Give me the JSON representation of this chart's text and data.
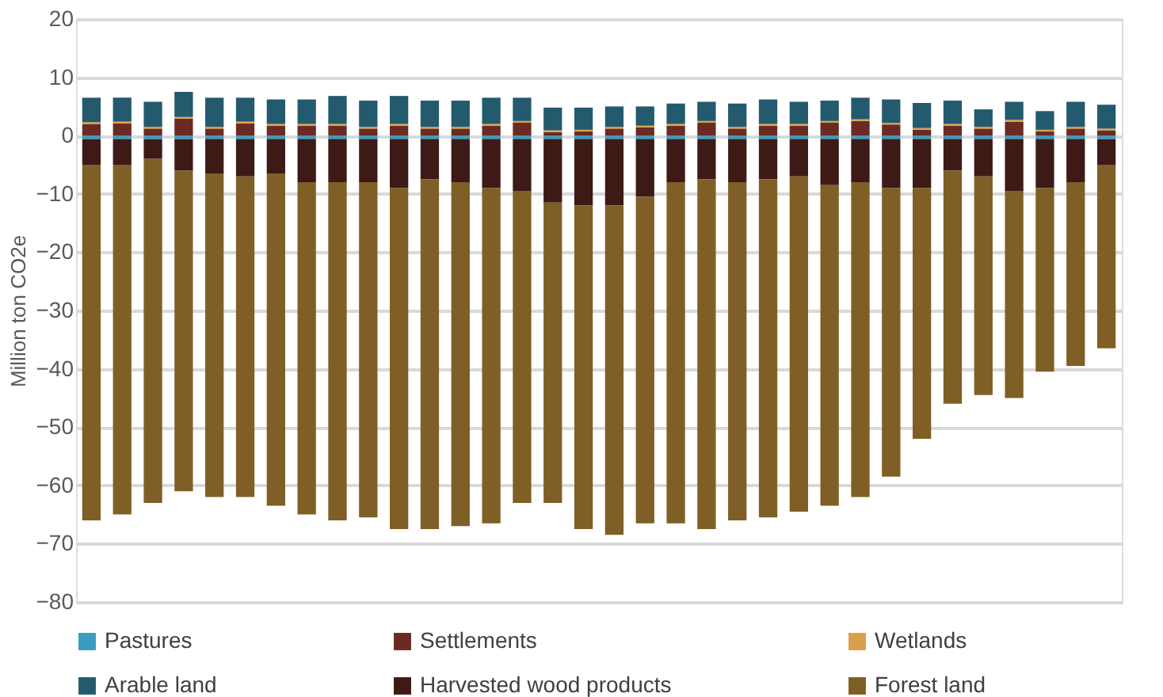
{
  "chart_data": {
    "type": "bar",
    "stacked": true,
    "ylabel": "Million ton CO2e",
    "categories": [
      null,
      null,
      null,
      null,
      null,
      null,
      null,
      null,
      null,
      null,
      null,
      null,
      null,
      null,
      null,
      null,
      null,
      null,
      null,
      null,
      null,
      null,
      null,
      null,
      null,
      null,
      null,
      null,
      null,
      null,
      null,
      null,
      null,
      null
    ],
    "series": [
      {
        "name": "Pastures",
        "color": "#3a9cbf",
        "values": [
          -0.6,
          -0.6,
          -0.6,
          -0.6,
          -0.6,
          -0.6,
          -0.6,
          -0.6,
          -0.6,
          -0.6,
          -0.6,
          -0.6,
          -0.6,
          -0.6,
          -0.6,
          -0.6,
          -0.6,
          -0.6,
          -0.6,
          -0.6,
          -0.6,
          -0.6,
          -0.6,
          -0.6,
          -0.6,
          -0.6,
          -0.6,
          -0.6,
          -0.6,
          -0.6,
          -0.6,
          -0.6,
          -0.6,
          -0.6
        ]
      },
      {
        "name": "Settlements",
        "color": "#6b2a22",
        "values": [
          2.0,
          2.1,
          1.2,
          2.9,
          1.2,
          2.1,
          1.7,
          1.7,
          1.7,
          1.2,
          1.7,
          1.2,
          1.2,
          1.7,
          2.2,
          0.6,
          0.7,
          1.2,
          1.4,
          1.7,
          2.2,
          1.2,
          1.7,
          1.7,
          2.2,
          2.5,
          1.9,
          1.0,
          1.7,
          1.2,
          2.4,
          0.7,
          1.2,
          0.9
        ]
      },
      {
        "name": "Wetlands",
        "color": "#d8a04a",
        "values": [
          0.3,
          0.3,
          0.3,
          0.3,
          0.3,
          0.3,
          0.3,
          0.3,
          0.3,
          0.3,
          0.3,
          0.3,
          0.3,
          0.3,
          0.3,
          0.3,
          0.3,
          0.3,
          0.3,
          0.3,
          0.3,
          0.3,
          0.3,
          0.3,
          0.3,
          0.3,
          0.3,
          0.3,
          0.3,
          0.3,
          0.3,
          0.3,
          0.3,
          0.3
        ]
      },
      {
        "name": "Arable land",
        "color": "#235a6e",
        "values": [
          4.2,
          4.1,
          4.3,
          4.3,
          5.0,
          4.1,
          4.2,
          4.2,
          4.8,
          4.5,
          4.8,
          4.5,
          4.5,
          4.5,
          4.0,
          3.9,
          3.8,
          3.5,
          3.3,
          3.5,
          3.3,
          4.0,
          4.2,
          3.8,
          3.5,
          3.7,
          4.0,
          4.3,
          4.0,
          3.0,
          3.1,
          3.2,
          4.3,
          4.1
        ]
      },
      {
        "name": "Harvested wood products",
        "color": "#3d1a16",
        "values": [
          -4.4,
          -4.4,
          -3.4,
          -5.4,
          -5.9,
          -6.4,
          -5.9,
          -7.4,
          -7.4,
          -7.4,
          -8.4,
          -6.9,
          -7.4,
          -8.4,
          -8.9,
          -10.9,
          -11.4,
          -11.4,
          -9.9,
          -7.4,
          -6.9,
          -7.4,
          -6.9,
          -6.4,
          -7.9,
          -7.4,
          -8.4,
          -8.4,
          -5.4,
          -6.4,
          -8.9,
          -8.4,
          -7.4,
          -4.4
        ]
      },
      {
        "name": "Forest land",
        "color": "#7f5f26",
        "values": [
          -61,
          -60,
          -59,
          -55,
          -55.5,
          -55,
          -57,
          -57,
          -58,
          -57.5,
          -58.5,
          -60,
          -59,
          -57.5,
          -53.5,
          -51.5,
          -55.5,
          -56.5,
          -56,
          -58.5,
          -60,
          -58,
          -58,
          -57.5,
          -55,
          -54,
          -49.5,
          -43,
          -40,
          -37.5,
          -35.5,
          -31.5,
          -31.5,
          -31.5
        ]
      }
    ],
    "ylim": [
      -80,
      20
    ],
    "yticks": [
      -80,
      -70,
      -60,
      -50,
      -40,
      -30,
      -20,
      -10,
      0,
      10,
      20
    ],
    "grid": "y",
    "legend": "bottom",
    "tick_labels": "y"
  }
}
